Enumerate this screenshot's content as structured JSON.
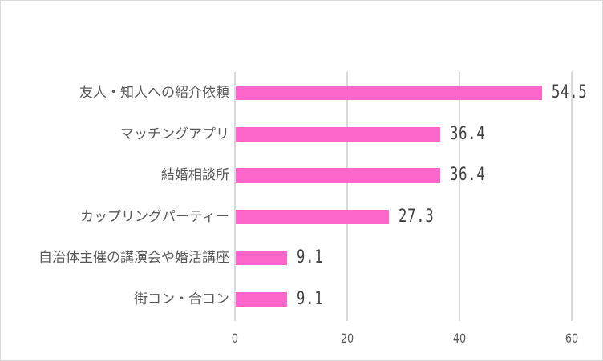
{
  "chart_data": {
    "type": "bar",
    "orientation": "horizontal",
    "title": "",
    "xlabel": "",
    "ylabel": "",
    "categories": [
      "友人・知人への紹介依頼",
      "マッチングアプリ",
      "結婚相談所",
      "カップリングパーティー",
      "自治体主催の講演会や婚活講座",
      "街コン・合コン"
    ],
    "values": [
      54.5,
      36.4,
      36.4,
      27.3,
      9.1,
      9.1
    ],
    "value_labels": [
      "54.5",
      "36.4",
      "36.4",
      "27.3",
      "9.1",
      "9.1"
    ],
    "xlim": [
      0,
      60
    ],
    "x_ticks": [
      "0",
      "20",
      "40",
      "60"
    ],
    "grid": true,
    "legend": null,
    "bar_color": "#ff66cc"
  }
}
